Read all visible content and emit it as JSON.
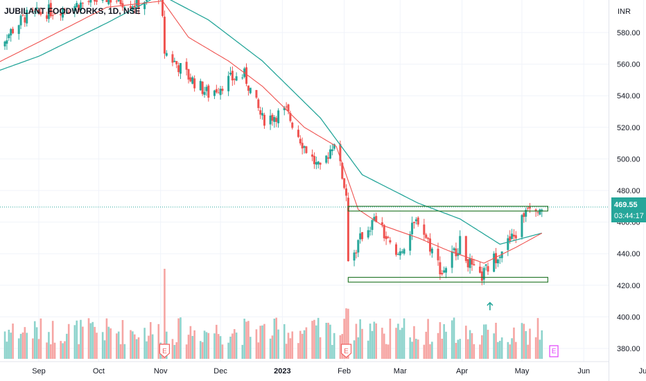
{
  "chart_data": {
    "type": "candlestick",
    "title": "JUBILANT FOODWORKS, 1D, NSE",
    "currency": "INR",
    "price_axis": {
      "ticks": [
        "580.00",
        "560.00",
        "540.00",
        "520.00",
        "500.00",
        "480.00",
        "460.00",
        "440.00",
        "420.00",
        "400.00",
        "380.00"
      ],
      "range": [
        368,
        606
      ]
    },
    "time_axis": {
      "labels": [
        "Sep",
        "Oct",
        "Nov",
        "Dec",
        "2023",
        "Feb",
        "Mar",
        "Apr",
        "May",
        "Jun",
        "Jul"
      ]
    },
    "last_price": {
      "value": "469.55",
      "countdown": "03:44:17"
    },
    "anchors": [
      {
        "date": "2022-08-10",
        "price": 570
      },
      {
        "date": "2022-08-25",
        "price": 590
      },
      {
        "date": "2022-09-15",
        "price": 596
      },
      {
        "date": "2022-10-05",
        "price": 602
      },
      {
        "date": "2022-10-20",
        "price": 598
      },
      {
        "date": "2022-11-01",
        "price": 606
      },
      {
        "date": "2022-11-03",
        "price": 568
      },
      {
        "date": "2022-11-15",
        "price": 552
      },
      {
        "date": "2022-11-25",
        "price": 541
      },
      {
        "date": "2022-12-05",
        "price": 550
      },
      {
        "date": "2022-12-13",
        "price": 553
      },
      {
        "date": "2022-12-22",
        "price": 525
      },
      {
        "date": "2023-01-03",
        "price": 530
      },
      {
        "date": "2023-01-12",
        "price": 508
      },
      {
        "date": "2023-01-20",
        "price": 492
      },
      {
        "date": "2023-01-27",
        "price": 512
      },
      {
        "date": "2023-02-02",
        "price": 478
      },
      {
        "date": "2023-02-03",
        "price": 431
      },
      {
        "date": "2023-02-10",
        "price": 452
      },
      {
        "date": "2023-02-17",
        "price": 462
      },
      {
        "date": "2023-02-27",
        "price": 437
      },
      {
        "date": "2023-03-10",
        "price": 462
      },
      {
        "date": "2023-03-22",
        "price": 428
      },
      {
        "date": "2023-03-31",
        "price": 447
      },
      {
        "date": "2023-04-06",
        "price": 430
      },
      {
        "date": "2023-04-10",
        "price": 424
      },
      {
        "date": "2023-04-20",
        "price": 442
      },
      {
        "date": "2023-04-28",
        "price": 452
      },
      {
        "date": "2023-05-04",
        "price": 472
      },
      {
        "date": "2023-05-11",
        "price": 469.55
      }
    ],
    "ema_fast_anchors": [
      {
        "date": "2022-08-10",
        "price": 560
      },
      {
        "date": "2022-09-01",
        "price": 574
      },
      {
        "date": "2022-10-05",
        "price": 596
      },
      {
        "date": "2022-11-02",
        "price": 600
      },
      {
        "date": "2022-11-15",
        "price": 577
      },
      {
        "date": "2022-12-05",
        "price": 562
      },
      {
        "date": "2022-12-22",
        "price": 546
      },
      {
        "date": "2023-01-12",
        "price": 520
      },
      {
        "date": "2023-01-28",
        "price": 508
      },
      {
        "date": "2023-02-08",
        "price": 468
      },
      {
        "date": "2023-02-20",
        "price": 458
      },
      {
        "date": "2023-03-10",
        "price": 450
      },
      {
        "date": "2023-03-25",
        "price": 442
      },
      {
        "date": "2023-04-12",
        "price": 434
      },
      {
        "date": "2023-04-28",
        "price": 444
      },
      {
        "date": "2023-05-11",
        "price": 453
      }
    ],
    "ema_slow_anchors": [
      {
        "date": "2022-08-10",
        "price": 555
      },
      {
        "date": "2022-09-01",
        "price": 565
      },
      {
        "date": "2022-10-05",
        "price": 586
      },
      {
        "date": "2022-11-01",
        "price": 604
      },
      {
        "date": "2022-11-25",
        "price": 588
      },
      {
        "date": "2022-12-22",
        "price": 562
      },
      {
        "date": "2023-01-20",
        "price": 526
      },
      {
        "date": "2023-02-10",
        "price": 490
      },
      {
        "date": "2023-03-10",
        "price": 472
      },
      {
        "date": "2023-03-31",
        "price": 462
      },
      {
        "date": "2023-04-20",
        "price": 446
      },
      {
        "date": "2023-05-11",
        "price": 453
      }
    ],
    "zones": [
      {
        "top": 470,
        "bottom": 467,
        "from": "2023-02-03",
        "to": "2023-05-14"
      },
      {
        "top": 425,
        "bottom": 422,
        "from": "2023-02-03",
        "to": "2023-05-14"
      }
    ],
    "signal_arrow": {
      "date": "2023-04-15",
      "price": 409
    },
    "earnings_markers": [
      {
        "date": "2022-11-03",
        "label": "E"
      },
      {
        "date": "2023-02-02",
        "label": "E"
      },
      {
        "date": "2023-05-17",
        "label": "E"
      }
    ],
    "colors": {
      "up": "#26a69a",
      "down": "#ef5350",
      "ema_fast": "#ef5350",
      "ema_slow": "#26a69a",
      "zone": "#2e7d32",
      "price_tag": "#26a69a",
      "earnings_upcoming": "#e040fb"
    },
    "grid": true
  }
}
